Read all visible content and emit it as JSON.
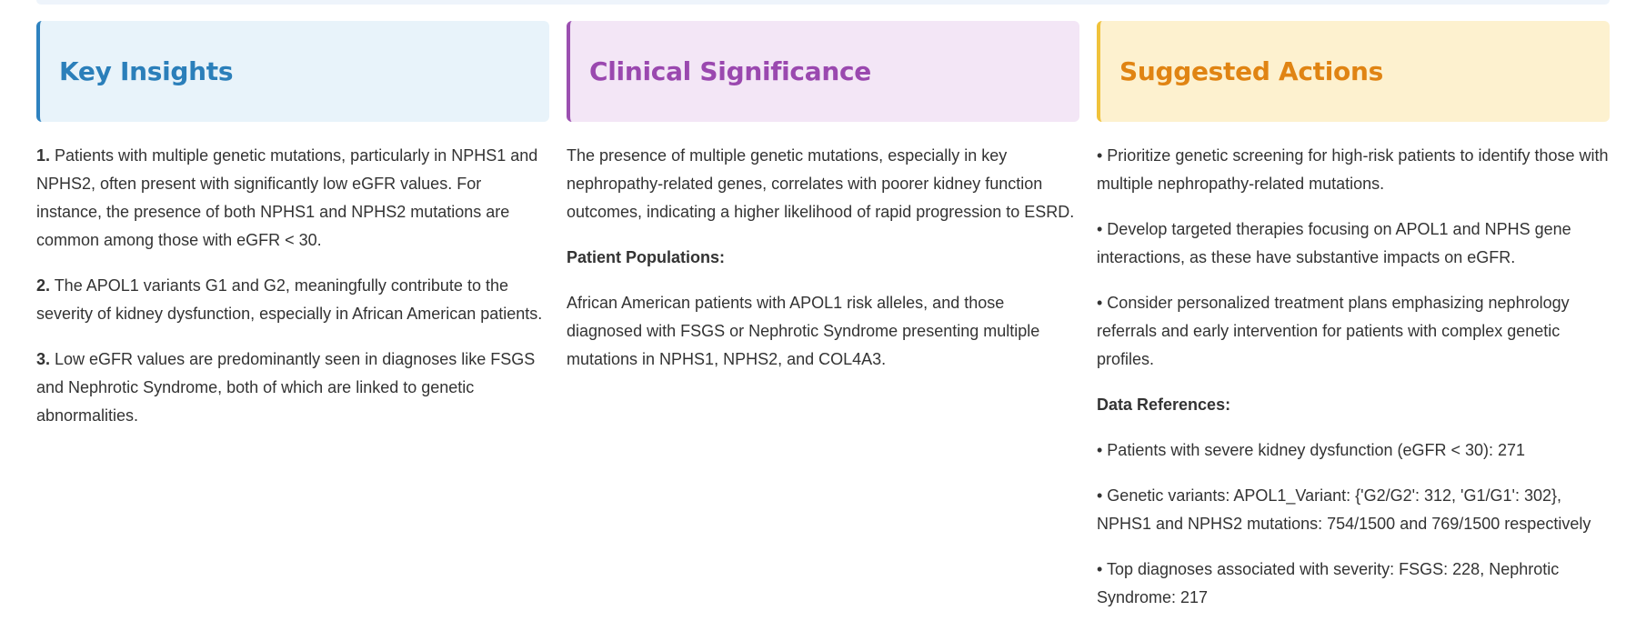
{
  "insights": {
    "title": "Key Insights",
    "items": [
      {
        "num": "1.",
        "text": " Patients with multiple genetic mutations, particularly in NPHS1 and NPHS2, often present with significantly low eGFR values. For instance, the presence of both NPHS1 and NPHS2 mutations are common among those with eGFR < 30."
      },
      {
        "num": "2.",
        "text": " The APOL1 variants G1 and G2, meaningfully contribute to the severity of kidney dysfunction, especially in African American patients."
      },
      {
        "num": "3.",
        "text": " Low eGFR values are predominantly seen in diagnoses like FSGS and Nephrotic Syndrome, both of which are linked to genetic abnormalities."
      }
    ]
  },
  "clinical": {
    "title": "Clinical Significance",
    "paragraph": "The presence of multiple genetic mutations, especially in key nephropathy-related genes, correlates with poorer kidney function outcomes, indicating a higher likelihood of rapid progression to ESRD.",
    "populations_heading": "Patient Populations:",
    "populations_text": "African American patients with APOL1 risk alleles, and those diagnosed with FSGS or Nephrotic Syndrome presenting multiple mutations in NPHS1, NPHS2, and COL4A3."
  },
  "actions": {
    "title": "Suggested Actions",
    "items": [
      "• Prioritize genetic screening for high-risk patients to identify those with multiple nephropathy-related mutations.",
      "• Develop targeted therapies focusing on APOL1 and NPHS gene interactions, as these have substantive impacts on eGFR.",
      "• Consider personalized treatment plans emphasizing nephrology referrals and early intervention for patients with complex genetic profiles."
    ],
    "refs_heading": "Data References:",
    "refs": [
      "• Patients with severe kidney dysfunction (eGFR < 30): 271",
      "• Genetic variants: APOL1_Variant: {'G2/G2': 312, 'G1/G1': 302}, NPHS1 and NPHS2 mutations: 754/1500 and 769/1500 respectively",
      "• Top diagnoses associated with severity: FSGS: 228, Nephrotic Syndrome: 217"
    ]
  },
  "colors": {
    "insights_accent": "#2b7fba",
    "clinical_accent": "#9a48af",
    "actions_accent": "#e08413"
  }
}
